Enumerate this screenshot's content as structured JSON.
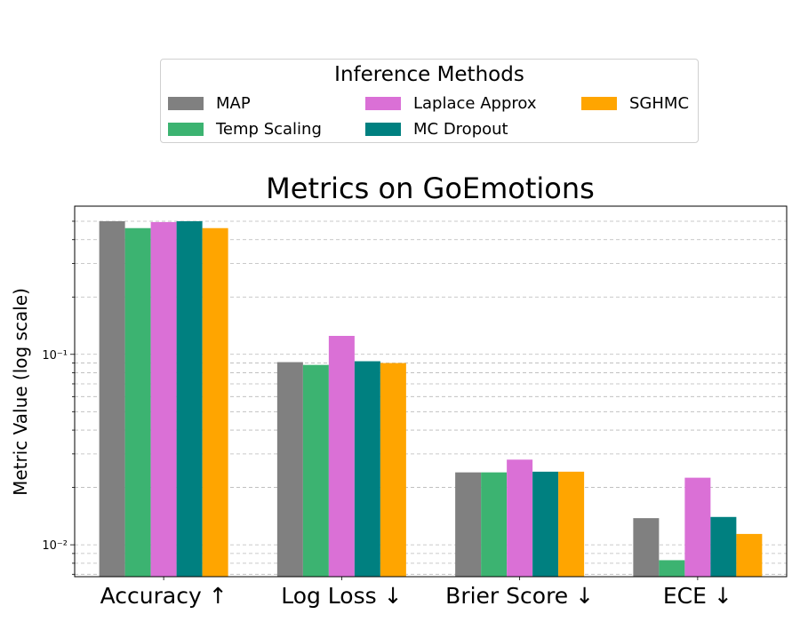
{
  "chart_data": {
    "type": "bar",
    "title": "Metrics on GoEmotions",
    "xlabel": "",
    "ylabel": "Metric Value (log scale)",
    "yscale": "log",
    "ylim": [
      0.0068,
      0.6
    ],
    "yticks": [
      {
        "value": 0.01,
        "label": "10⁻²"
      },
      {
        "value": 0.1,
        "label": "10⁻¹"
      }
    ],
    "grid": "y-major-and-minor-dashed",
    "categories": [
      "Accuracy ↑",
      "Log Loss ↓",
      "Brier Score ↓",
      "ECE ↓"
    ],
    "series": [
      {
        "name": "MAP",
        "color": "#808080",
        "values": [
          0.5,
          0.091,
          0.024,
          0.0138
        ]
      },
      {
        "name": "Temp Scaling",
        "color": "#3cb371",
        "values": [
          0.46,
          0.088,
          0.024,
          0.0083
        ]
      },
      {
        "name": "Laplace Approx",
        "color": "#da70d6",
        "values": [
          0.495,
          0.125,
          0.028,
          0.0225
        ]
      },
      {
        "name": "MC Dropout",
        "color": "#008080",
        "values": [
          0.5,
          0.092,
          0.0242,
          0.014
        ]
      },
      {
        "name": "SGHMC",
        "color": "#ffa500",
        "values": [
          0.46,
          0.09,
          0.0242,
          0.0114
        ]
      }
    ],
    "legend": {
      "title": "Inference Methods",
      "placement": "top-center",
      "columns": 3
    }
  }
}
